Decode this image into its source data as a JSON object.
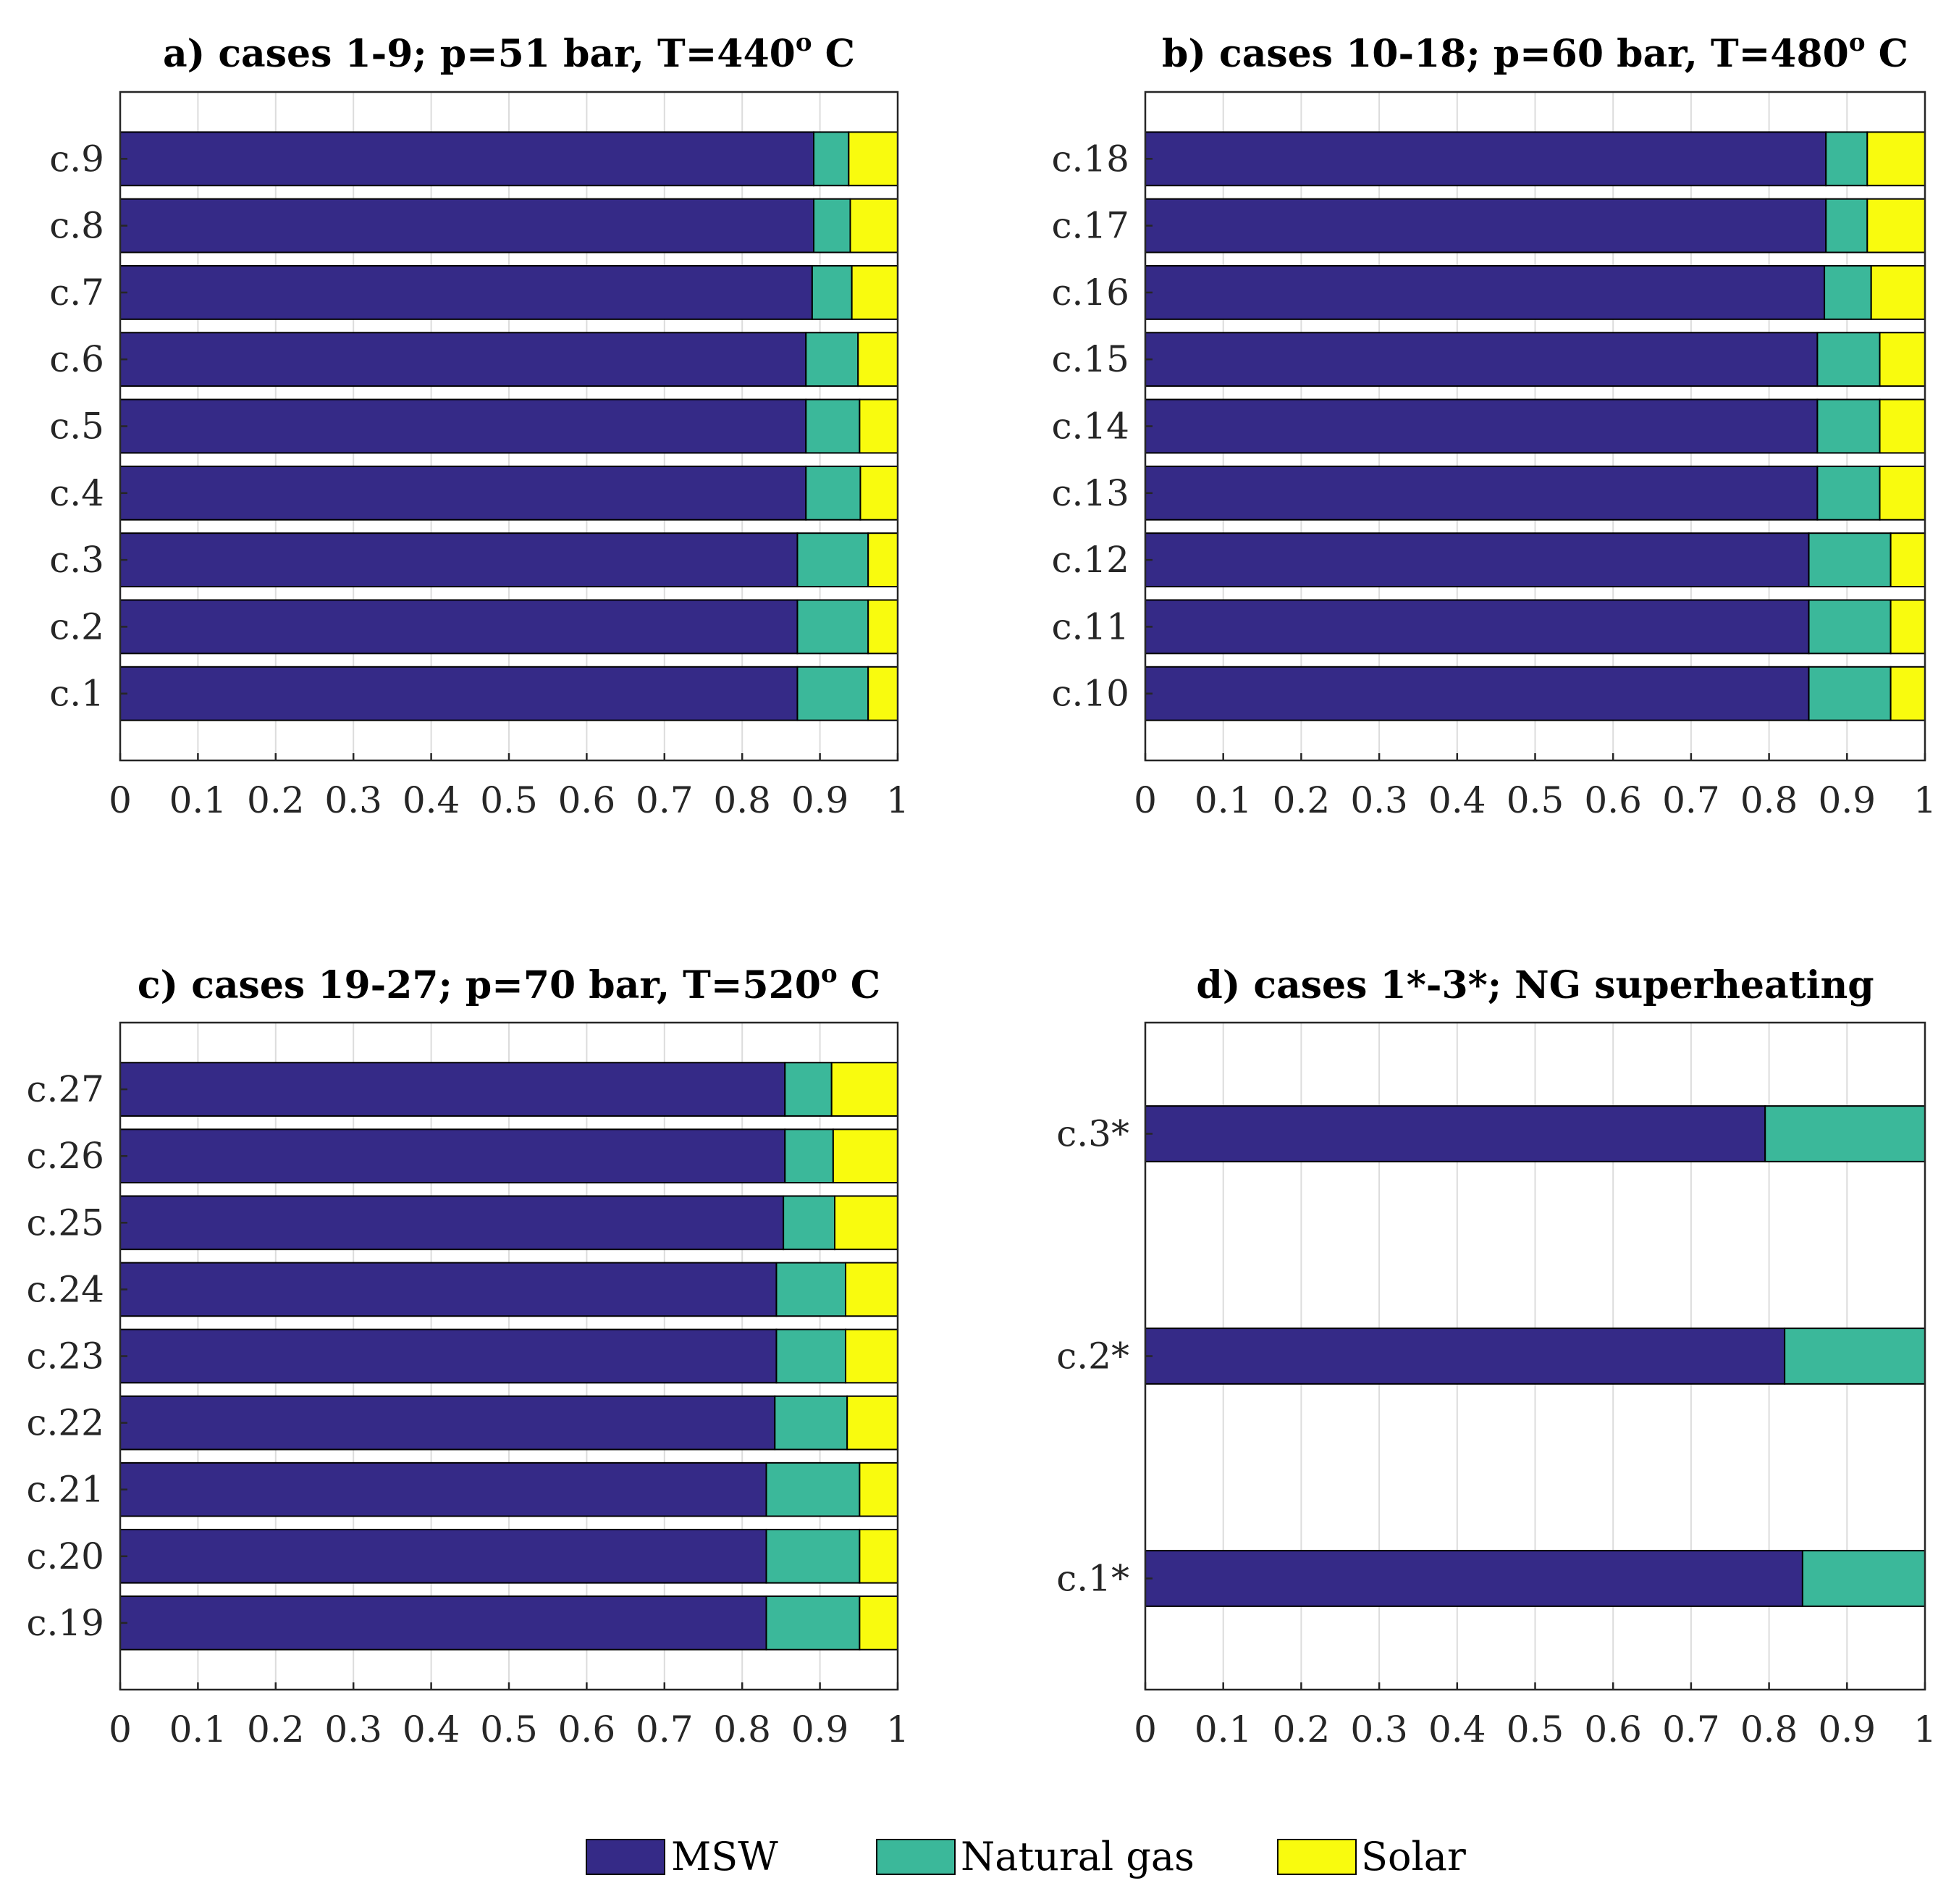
{
  "chart_data": [
    {
      "type": "bar",
      "orientation": "horizontal",
      "stacked": true,
      "title": "a) cases 1-9; p=51 bar, T=440",
      "title_superscript": "o",
      "title_suffix": " C",
      "categories": [
        "c.1",
        "c.2",
        "c.3",
        "c.4",
        "c.5",
        "c.6",
        "c.7",
        "c.8",
        "c.9"
      ],
      "series": [
        {
          "name": "MSW",
          "values": [
            0.871,
            0.871,
            0.871,
            0.882,
            0.882,
            0.882,
            0.89,
            0.892,
            0.892
          ]
        },
        {
          "name": "Natural gas",
          "values": [
            0.091,
            0.091,
            0.091,
            0.07,
            0.069,
            0.067,
            0.051,
            0.047,
            0.045
          ]
        },
        {
          "name": "Solar",
          "values": [
            0.038,
            0.038,
            0.038,
            0.048,
            0.049,
            0.051,
            0.059,
            0.061,
            0.063
          ]
        }
      ],
      "xlim": [
        0,
        1
      ],
      "xticks": [
        "0",
        "0.1",
        "0.2",
        "0.3",
        "0.4",
        "0.5",
        "0.6",
        "0.7",
        "0.8",
        "0.9",
        "1"
      ],
      "grid": true
    },
    {
      "type": "bar",
      "orientation": "horizontal",
      "stacked": true,
      "title": "b) cases 10-18; p=60 bar, T=480",
      "title_superscript": "o",
      "title_suffix": " C",
      "categories": [
        "c.10",
        "c.11",
        "c.12",
        "c.13",
        "c.14",
        "c.15",
        "c.16",
        "c.17",
        "c.18"
      ],
      "series": [
        {
          "name": "MSW",
          "values": [
            0.851,
            0.851,
            0.851,
            0.862,
            0.862,
            0.862,
            0.871,
            0.873,
            0.873
          ]
        },
        {
          "name": "Natural gas",
          "values": [
            0.105,
            0.105,
            0.105,
            0.08,
            0.08,
            0.08,
            0.06,
            0.053,
            0.053
          ]
        },
        {
          "name": "Solar",
          "values": [
            0.044,
            0.044,
            0.044,
            0.058,
            0.058,
            0.058,
            0.069,
            0.074,
            0.074
          ]
        }
      ],
      "xlim": [
        0,
        1
      ],
      "xticks": [
        "0",
        "0.1",
        "0.2",
        "0.3",
        "0.4",
        "0.5",
        "0.6",
        "0.7",
        "0.8",
        "0.9",
        "1"
      ],
      "grid": true
    },
    {
      "type": "bar",
      "orientation": "horizontal",
      "stacked": true,
      "title": "c) cases 19-27; p=70 bar, T=520",
      "title_superscript": "o",
      "title_suffix": " C",
      "categories": [
        "c.19",
        "c.20",
        "c.21",
        "c.22",
        "c.23",
        "c.24",
        "c.25",
        "c.26",
        "c.27"
      ],
      "series": [
        {
          "name": "MSW",
          "values": [
            0.831,
            0.831,
            0.831,
            0.842,
            0.844,
            0.844,
            0.853,
            0.855,
            0.855
          ]
        },
        {
          "name": "Natural gas",
          "values": [
            0.12,
            0.12,
            0.12,
            0.093,
            0.089,
            0.089,
            0.066,
            0.062,
            0.06
          ]
        },
        {
          "name": "Solar",
          "values": [
            0.049,
            0.049,
            0.049,
            0.065,
            0.067,
            0.067,
            0.081,
            0.083,
            0.085
          ]
        }
      ],
      "xlim": [
        0,
        1
      ],
      "xticks": [
        "0",
        "0.1",
        "0.2",
        "0.3",
        "0.4",
        "0.5",
        "0.6",
        "0.7",
        "0.8",
        "0.9",
        "1"
      ],
      "grid": true
    },
    {
      "type": "bar",
      "orientation": "horizontal",
      "stacked": true,
      "title": "d) cases 1*-3*; NG superheating",
      "title_superscript": "",
      "title_suffix": "",
      "categories": [
        "c.1*",
        "c.2*",
        "c.3*"
      ],
      "series": [
        {
          "name": "MSW",
          "values": [
            0.843,
            0.82,
            0.795
          ]
        },
        {
          "name": "Natural gas",
          "values": [
            0.157,
            0.18,
            0.205
          ]
        },
        {
          "name": "Solar",
          "values": [
            0,
            0,
            0
          ]
        }
      ],
      "xlim": [
        0,
        1
      ],
      "xticks": [
        "0",
        "0.1",
        "0.2",
        "0.3",
        "0.4",
        "0.5",
        "0.6",
        "0.7",
        "0.8",
        "0.9",
        "1"
      ],
      "grid": true
    }
  ],
  "legend": [
    {
      "name": "MSW",
      "color": "#352a87"
    },
    {
      "name": "Natural gas",
      "color": "#3bb89a"
    },
    {
      "name": "Solar",
      "color": "#f9fb0e"
    }
  ]
}
